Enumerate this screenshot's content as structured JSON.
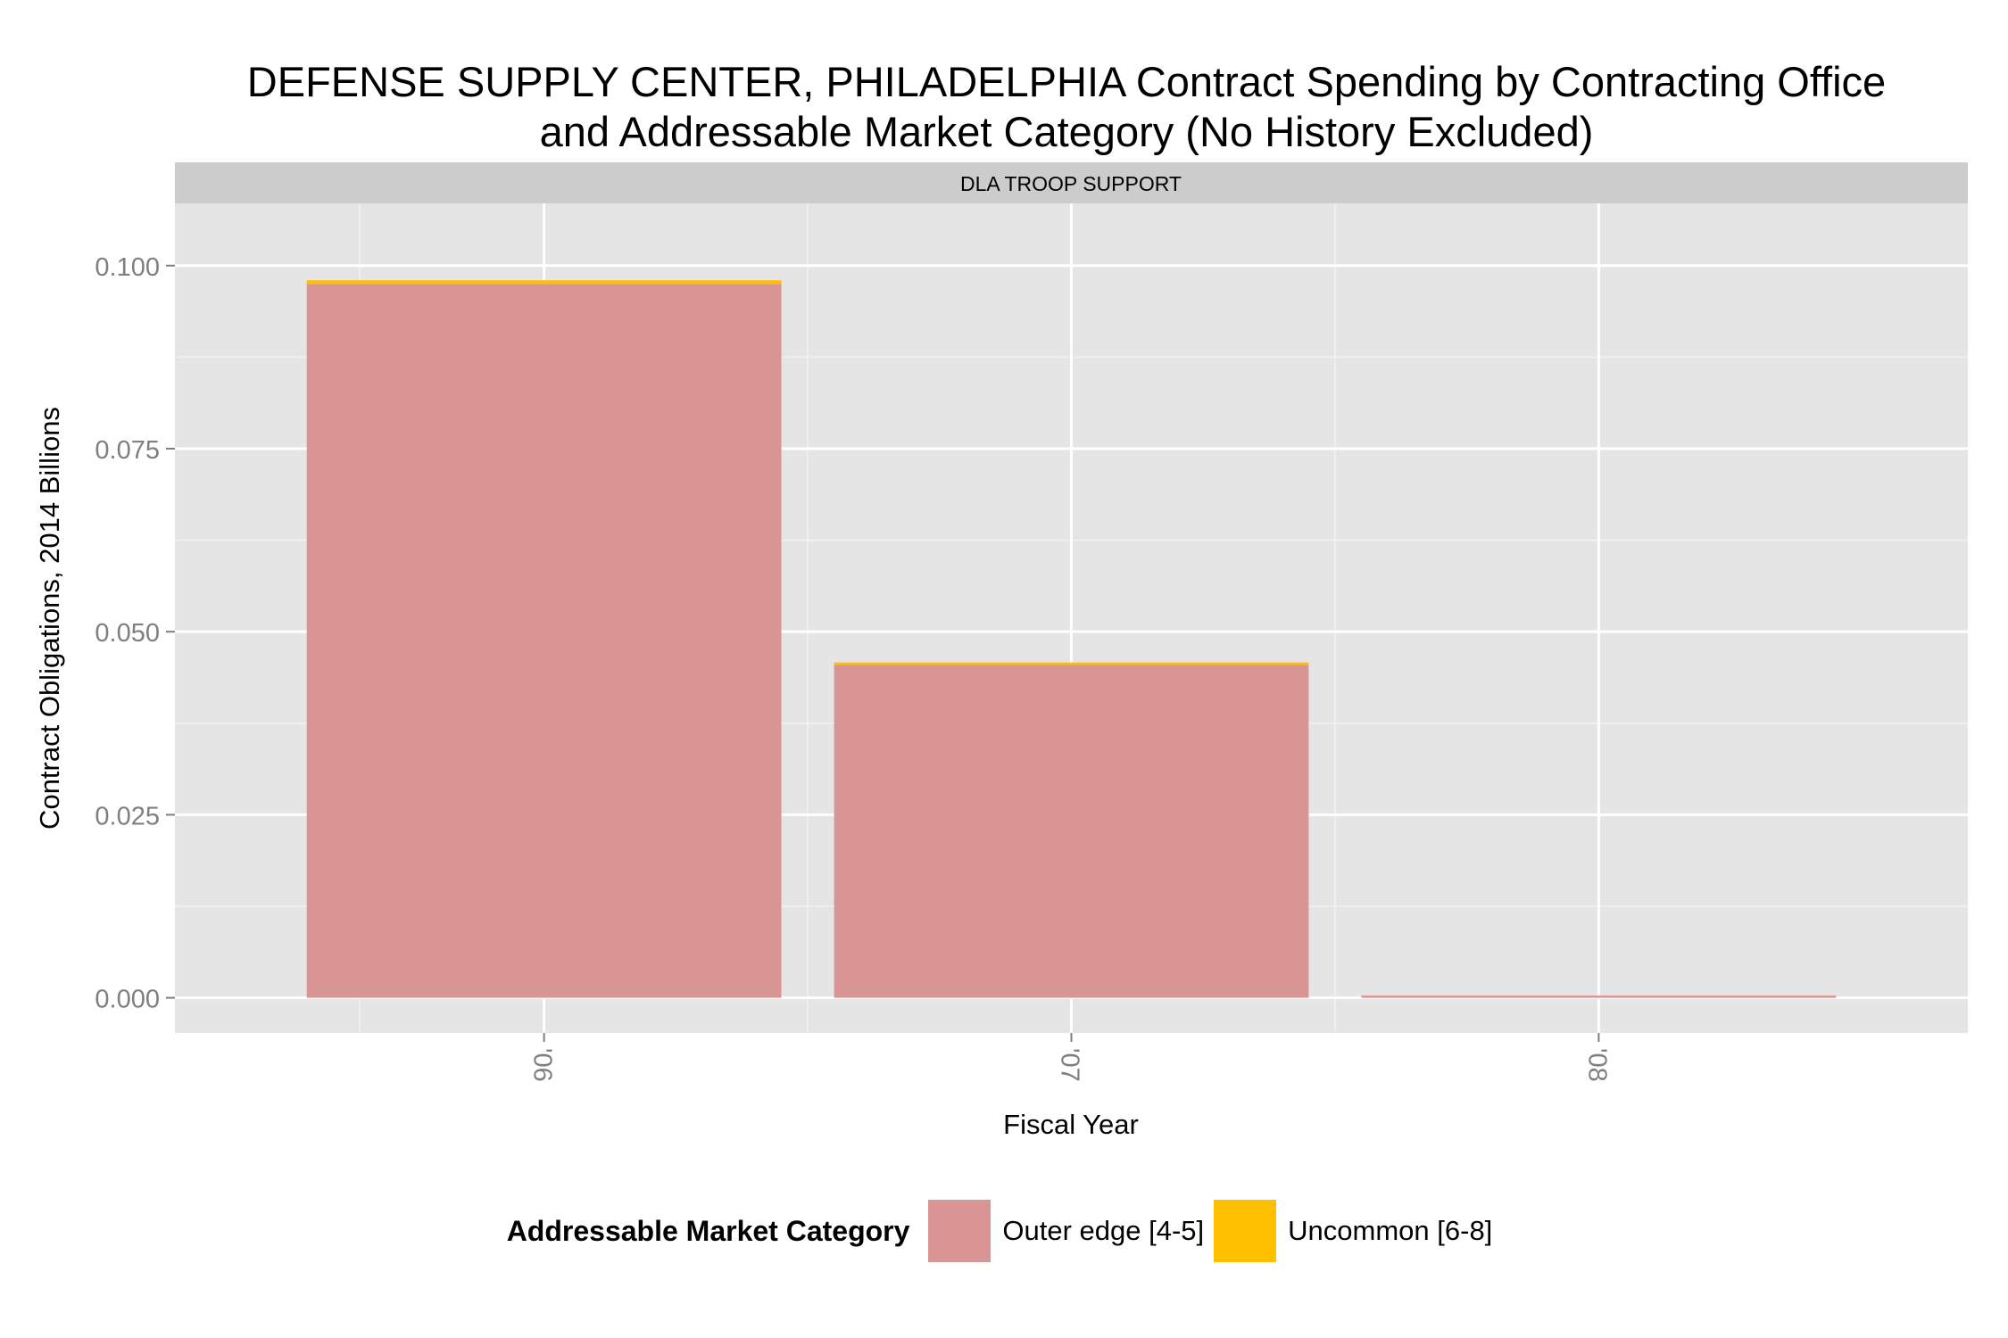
{
  "chart_data": {
    "type": "bar",
    "stacked": true,
    "title": "DEFENSE SUPPLY CENTER, PHILADELPHIA Contract Spending by Contracting Office\nand Addressable Market Category (No History Excluded)",
    "title_lines": [
      "DEFENSE SUPPLY CENTER, PHILADELPHIA Contract Spending by Contracting Office",
      "and Addressable Market Category (No History Excluded)"
    ],
    "facet_label": "DLA TROOP SUPPORT",
    "xlabel": "Fiscal Year",
    "ylabel": "Contract Obligations, 2014 Billions",
    "categories": [
      "'06",
      "'07",
      "'08"
    ],
    "ylim": [
      -0.0048,
      0.1085
    ],
    "yticks": [
      0.0,
      0.025,
      0.05,
      0.075,
      0.1
    ],
    "ytick_labels": [
      "0.000",
      "0.025",
      "0.050",
      "0.075",
      "0.100"
    ],
    "grid": true,
    "legend_position": "bottom",
    "legend_title": "Addressable Market Category",
    "series": [
      {
        "name": "Outer edge [4-5]",
        "color": "#d99594",
        "values": [
          0.0975,
          0.0455,
          0.0003
        ]
      },
      {
        "name": "Uncommon [6-8]",
        "color": "#ffc000",
        "values": [
          0.0005,
          0.0003,
          0.0
        ]
      }
    ]
  }
}
